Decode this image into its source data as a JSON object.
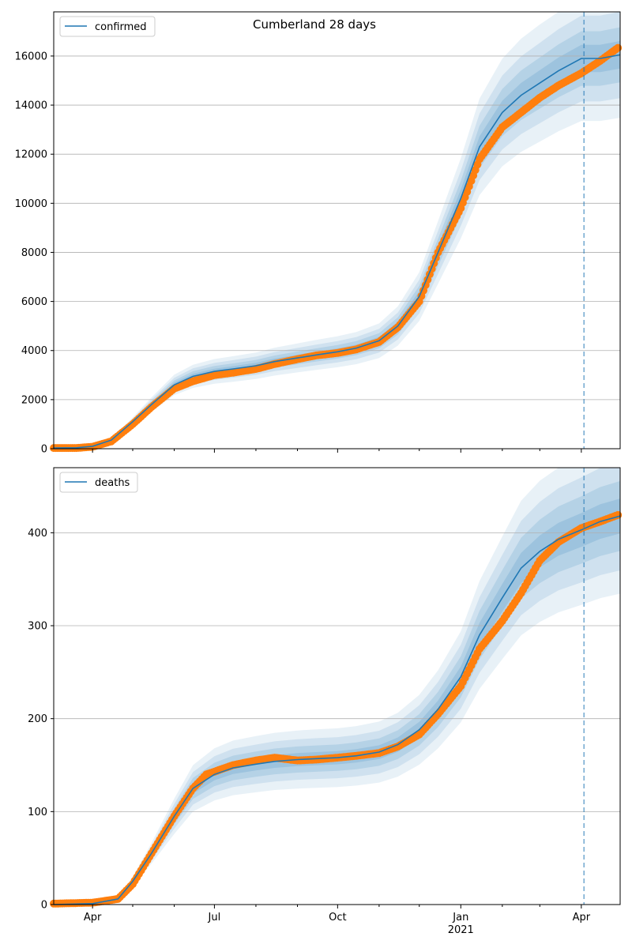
{
  "figure": {
    "title": "Cumberland 28 days"
  },
  "chart_data": [
    {
      "type": "line",
      "legend": [
        "confirmed"
      ],
      "legend_position": "top-left",
      "grid": "horizontal",
      "x_range": [
        "2020-03-03",
        "2021-04-30"
      ],
      "ylim": [
        0,
        17800
      ],
      "yticks": [
        0,
        2000,
        4000,
        6000,
        8000,
        10000,
        12000,
        14000,
        16000
      ],
      "vline_date": "2021-04-03",
      "colors": {
        "model": "#1f77b4",
        "observed": "#ff7f0e",
        "band": "#1f77b4",
        "grid": "#b0b0b0"
      },
      "series": [
        {
          "name": "confirmed",
          "role": "model",
          "points": [
            [
              "2020-03-03",
              30
            ],
            [
              "2020-03-20",
              40
            ],
            [
              "2020-04-01",
              100
            ],
            [
              "2020-04-15",
              350
            ],
            [
              "2020-05-01",
              1100
            ],
            [
              "2020-05-15",
              1800
            ],
            [
              "2020-06-01",
              2600
            ],
            [
              "2020-06-15",
              2950
            ],
            [
              "2020-07-01",
              3150
            ],
            [
              "2020-07-15",
              3250
            ],
            [
              "2020-08-01",
              3380
            ],
            [
              "2020-08-15",
              3550
            ],
            [
              "2020-09-01",
              3700
            ],
            [
              "2020-09-15",
              3820
            ],
            [
              "2020-10-01",
              3950
            ],
            [
              "2020-10-15",
              4100
            ],
            [
              "2020-11-01",
              4400
            ],
            [
              "2020-11-15",
              5000
            ],
            [
              "2020-12-01",
              6200
            ],
            [
              "2020-12-15",
              8000
            ],
            [
              "2021-01-01",
              10200
            ],
            [
              "2021-01-15",
              12300
            ],
            [
              "2021-02-01",
              13700
            ],
            [
              "2021-02-15",
              14400
            ],
            [
              "2021-03-01",
              14900
            ],
            [
              "2021-03-15",
              15400
            ],
            [
              "2021-04-01",
              15900
            ],
            [
              "2021-04-15",
              15900
            ],
            [
              "2021-04-30",
              16050
            ]
          ]
        },
        {
          "name": "observed",
          "role": "observed",
          "points": [
            [
              "2020-03-03",
              30
            ],
            [
              "2020-03-20",
              30
            ],
            [
              "2020-04-01",
              80
            ],
            [
              "2020-04-15",
              300
            ],
            [
              "2020-05-01",
              1000
            ],
            [
              "2020-05-15",
              1700
            ],
            [
              "2020-06-01",
              2450
            ],
            [
              "2020-06-15",
              2750
            ],
            [
              "2020-07-01",
              3000
            ],
            [
              "2020-07-15",
              3100
            ],
            [
              "2020-08-01",
              3250
            ],
            [
              "2020-08-15",
              3450
            ],
            [
              "2020-09-01",
              3650
            ],
            [
              "2020-09-15",
              3800
            ],
            [
              "2020-10-01",
              3900
            ],
            [
              "2020-10-15",
              4050
            ],
            [
              "2020-11-01",
              4350
            ],
            [
              "2020-11-15",
              4950
            ],
            [
              "2020-12-01",
              6000
            ],
            [
              "2020-12-15",
              8000
            ],
            [
              "2021-01-01",
              9800
            ],
            [
              "2021-01-15",
              11800
            ],
            [
              "2021-02-01",
              13100
            ],
            [
              "2021-02-15",
              13700
            ],
            [
              "2021-03-01",
              14300
            ],
            [
              "2021-03-15",
              14800
            ],
            [
              "2021-04-01",
              15300
            ],
            [
              "2021-04-15",
              15800
            ],
            [
              "2021-04-30",
              16400
            ]
          ]
        }
      ]
    },
    {
      "type": "line",
      "legend": [
        "deaths"
      ],
      "legend_position": "top-left",
      "grid": "horizontal",
      "x_range": [
        "2020-03-03",
        "2021-04-30"
      ],
      "ylim": [
        0,
        470
      ],
      "yticks": [
        0,
        100,
        200,
        300,
        400
      ],
      "xticks": [
        "2020-04-01",
        "2020-07-01",
        "2020-10-01",
        "2021-01-01",
        "2021-04-01"
      ],
      "xtick_labels": [
        "Apr",
        "Jul",
        "Oct",
        "Jan",
        "Apr"
      ],
      "xtick_sublabel": "2021",
      "vline_date": "2021-04-03",
      "colors": {
        "model": "#1f77b4",
        "observed": "#ff7f0e",
        "band": "#1f77b4",
        "grid": "#b0b0b0"
      },
      "series": [
        {
          "name": "deaths",
          "role": "model",
          "points": [
            [
              "2020-03-03",
              0
            ],
            [
              "2020-04-01",
              1
            ],
            [
              "2020-04-20",
              6
            ],
            [
              "2020-05-01",
              25
            ],
            [
              "2020-05-15",
              55
            ],
            [
              "2020-06-01",
              95
            ],
            [
              "2020-06-15",
              125
            ],
            [
              "2020-07-01",
              140
            ],
            [
              "2020-07-15",
              147
            ],
            [
              "2020-08-01",
              151
            ],
            [
              "2020-08-15",
              154
            ],
            [
              "2020-09-01",
              156
            ],
            [
              "2020-09-15",
              157
            ],
            [
              "2020-10-01",
              158
            ],
            [
              "2020-10-15",
              160
            ],
            [
              "2020-11-01",
              164
            ],
            [
              "2020-11-15",
              172
            ],
            [
              "2020-12-01",
              188
            ],
            [
              "2020-12-15",
              210
            ],
            [
              "2021-01-01",
              245
            ],
            [
              "2021-01-15",
              290
            ],
            [
              "2021-02-01",
              330
            ],
            [
              "2021-02-15",
              362
            ],
            [
              "2021-03-01",
              380
            ],
            [
              "2021-03-15",
              393
            ],
            [
              "2021-04-01",
              403
            ],
            [
              "2021-04-15",
              412
            ],
            [
              "2021-04-30",
              418
            ]
          ]
        },
        {
          "name": "observed",
          "role": "observed",
          "points": [
            [
              "2020-03-03",
              1
            ],
            [
              "2020-04-01",
              2
            ],
            [
              "2020-04-20",
              6
            ],
            [
              "2020-05-01",
              22
            ],
            [
              "2020-05-15",
              55
            ],
            [
              "2020-06-01",
              95
            ],
            [
              "2020-06-15",
              125
            ],
            [
              "2020-06-25",
              140
            ],
            [
              "2020-07-15",
              150
            ],
            [
              "2020-08-01",
              155
            ],
            [
              "2020-08-15",
              158
            ],
            [
              "2020-09-01",
              155
            ],
            [
              "2020-09-15",
              156
            ],
            [
              "2020-10-01",
              158
            ],
            [
              "2020-10-15",
              160
            ],
            [
              "2020-11-01",
              163
            ],
            [
              "2020-11-15",
              170
            ],
            [
              "2020-12-01",
              183
            ],
            [
              "2020-12-15",
              205
            ],
            [
              "2021-01-01",
              235
            ],
            [
              "2021-01-15",
              275
            ],
            [
              "2021-02-01",
              305
            ],
            [
              "2021-02-15",
              335
            ],
            [
              "2021-03-01",
              370
            ],
            [
              "2021-03-15",
              390
            ],
            [
              "2021-04-01",
              405
            ],
            [
              "2021-04-15",
              412
            ],
            [
              "2021-04-30",
              420
            ]
          ]
        }
      ]
    }
  ]
}
